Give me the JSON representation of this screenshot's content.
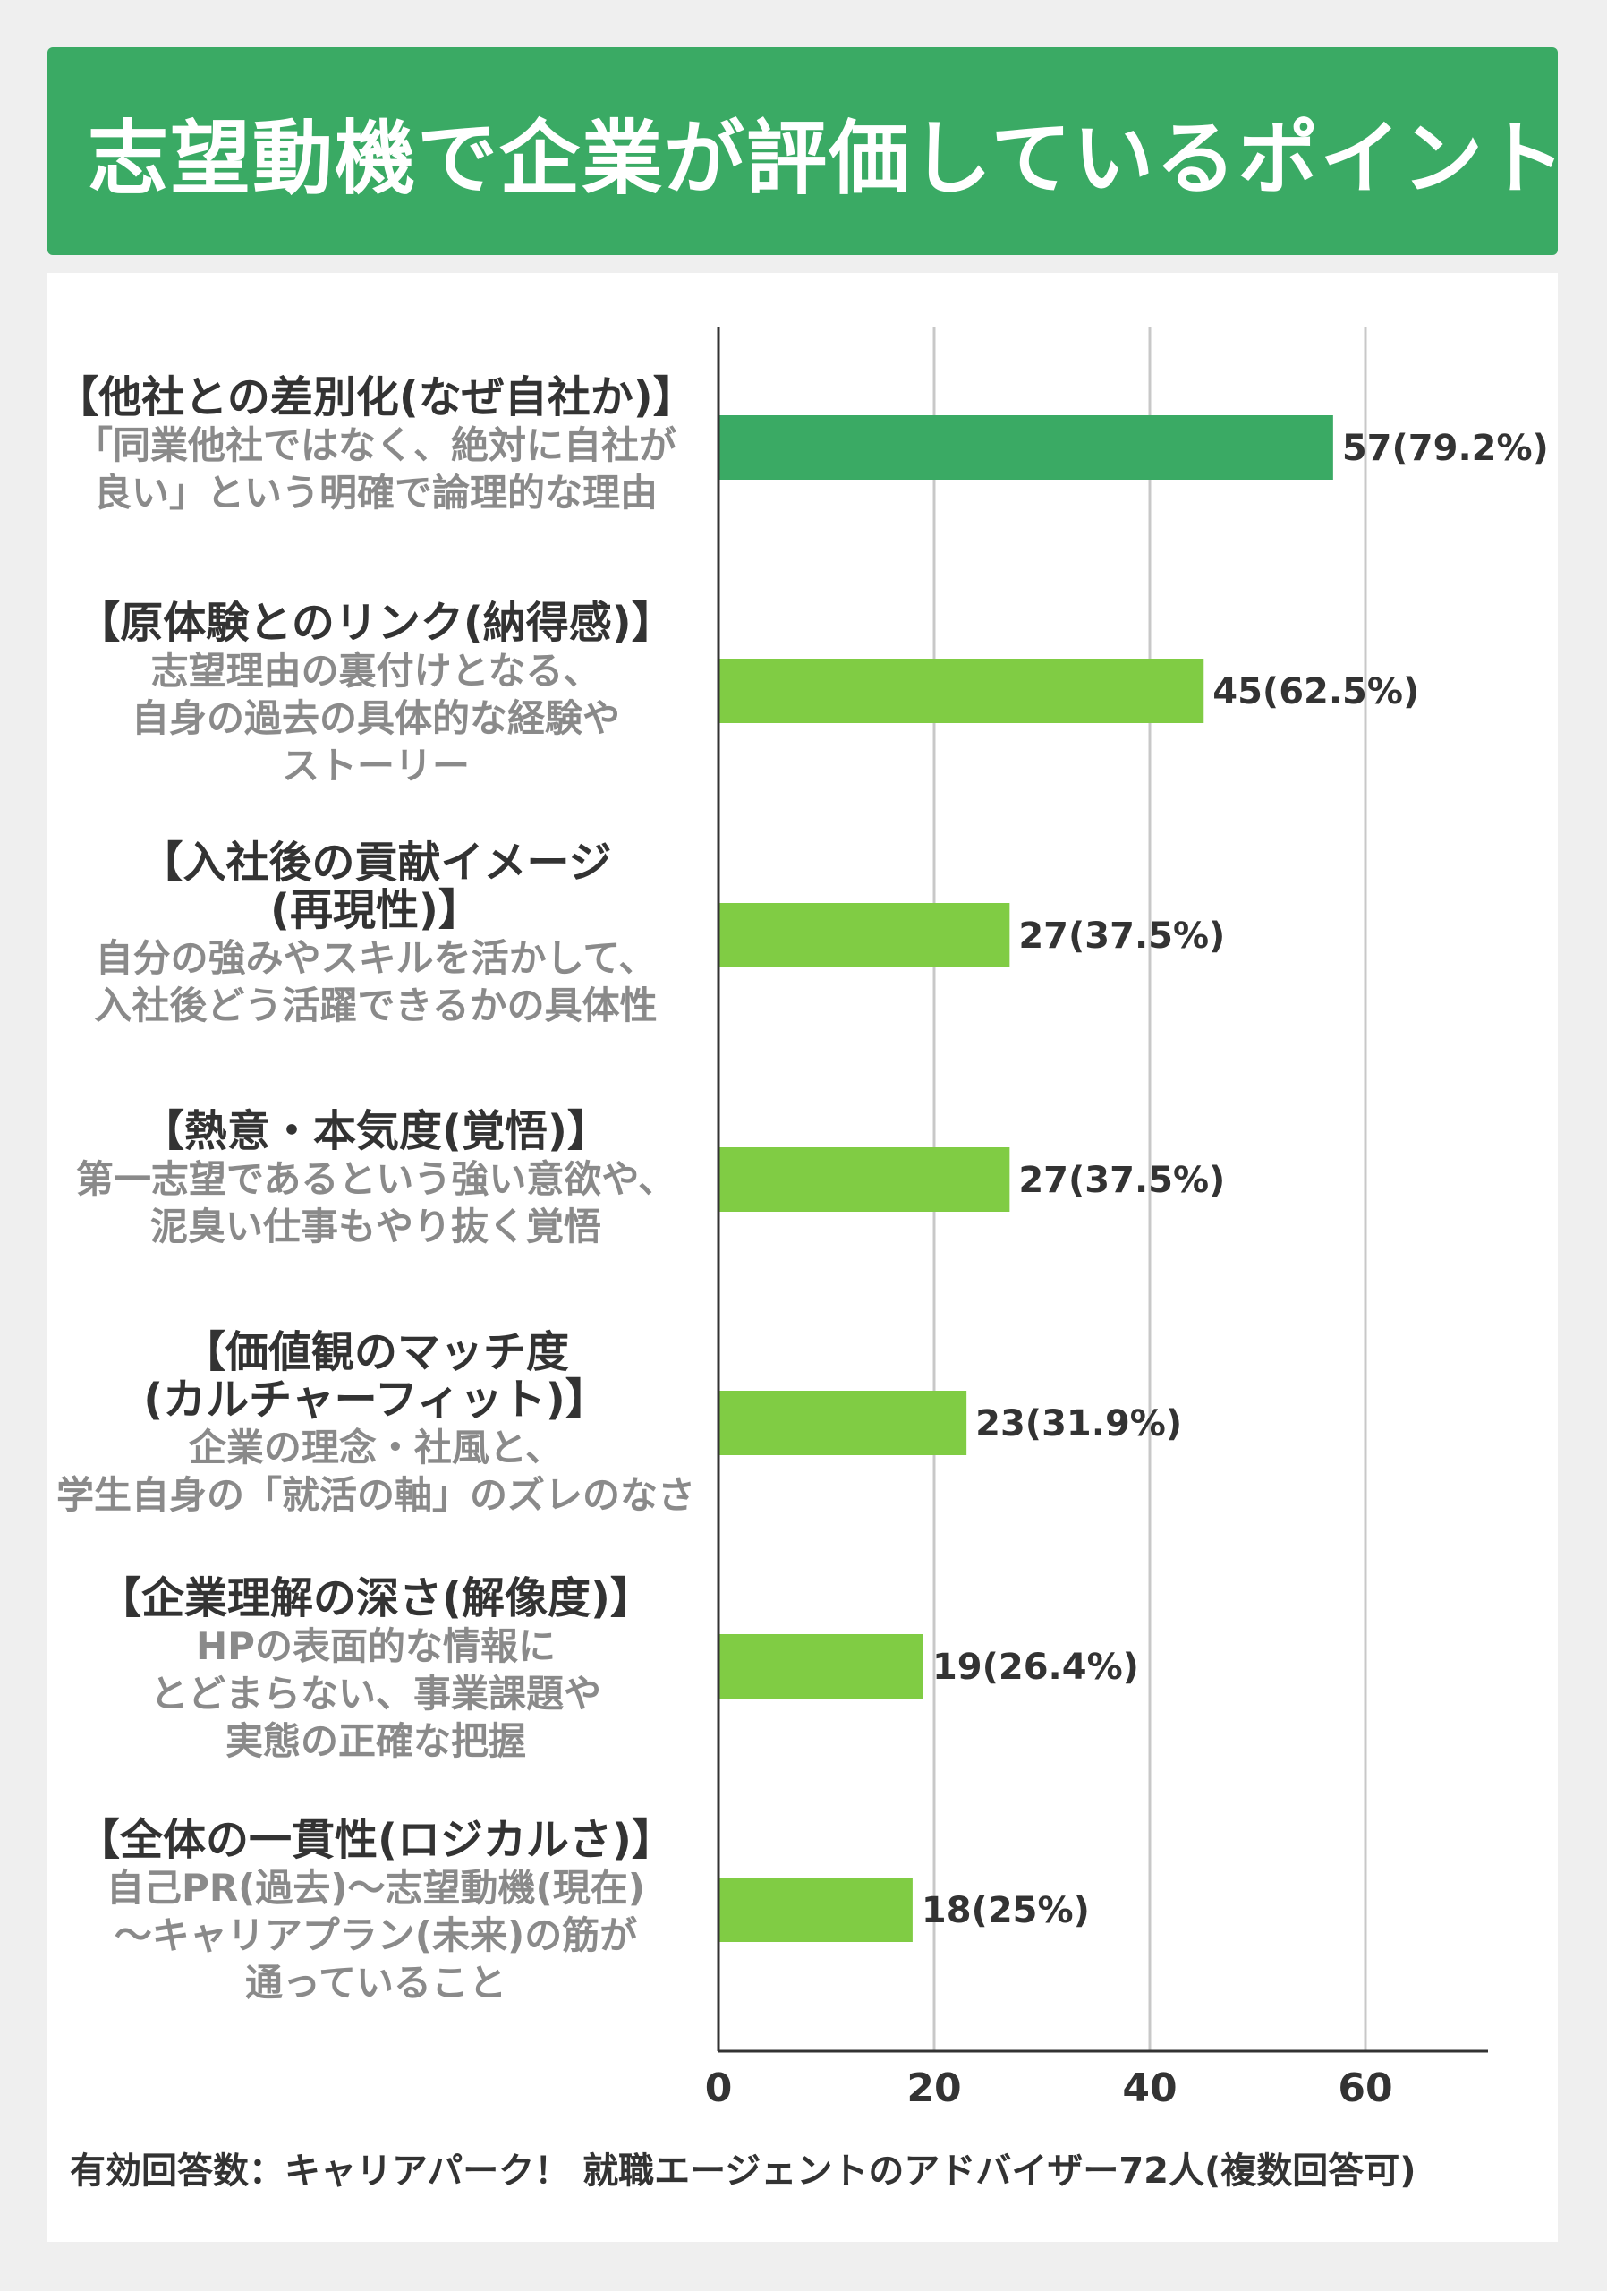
{
  "title": "志望動機で企業が評価しているポイント",
  "colors": {
    "header_bg": "#3aaa64",
    "highlight_bar": "#3aaa64",
    "bar": "#80cc44",
    "title_text": "#333333",
    "desc_text": "#8a8a8a"
  },
  "chart_data": {
    "type": "bar",
    "orientation": "horizontal",
    "categories": [
      {
        "title": "【他社との差別化(なぜ自社か)】",
        "description": "「同業他社ではなく、絶対に自社が\n良い」という明確で論理的な理由",
        "value": 57,
        "label": "57(79.2%)",
        "highlight": true
      },
      {
        "title": "【原体験とのリンク(納得感)】",
        "description": "志望理由の裏付けとなる、\n自身の過去の具体的な経験や\nストーリー",
        "value": 45,
        "label": "45(62.5%)",
        "highlight": false
      },
      {
        "title": "【入社後の貢献イメージ\n(再現性)】",
        "description": "自分の強みやスキルを活かして、\n入社後どう活躍できるかの具体性",
        "value": 27,
        "label": "27(37.5%)",
        "highlight": false
      },
      {
        "title": "【熱意・本気度(覚悟)】",
        "description": "第一志望であるという強い意欲や、\n泥臭い仕事もやり抜く覚悟",
        "value": 27,
        "label": "27(37.5%)",
        "highlight": false
      },
      {
        "title": "【価値観のマッチ度\n(カルチャーフィット)】",
        "description": "企業の理念・社風と、\n学生自身の「就活の軸」のズレのなさ",
        "value": 23,
        "label": "23(31.9%)",
        "highlight": false
      },
      {
        "title": "【企業理解の深さ(解像度)】",
        "description": "HPの表面的な情報に\nとどまらない、事業課題や\n実態の正確な把握",
        "value": 19,
        "label": "19(26.4%)",
        "highlight": false
      },
      {
        "title": "【全体の一貫性(ロジカルさ)】",
        "description": "自己PR(過去)～志望動機(現在)\n～キャリアプラン(未来)の筋が\n通っていること",
        "value": 18,
        "label": "18(25%)",
        "highlight": false
      }
    ],
    "xlim": [
      0,
      72
    ],
    "xticks": [
      0,
      20,
      40,
      60
    ],
    "grid": true
  },
  "footer": "有効回答数：キャリアパーク！ 就職エージェントのアドバイザー72人(複数回答可)"
}
